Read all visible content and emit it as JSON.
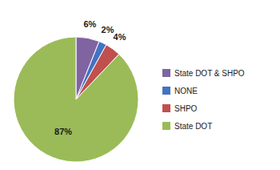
{
  "chart_data": {
    "type": "pie",
    "categories": [
      "State DOT & SHPO",
      "NONE",
      "SHPO",
      "State DOT"
    ],
    "values": [
      6,
      2,
      4,
      87
    ],
    "value_labels": [
      "6%",
      "2%",
      "4%",
      "87%"
    ],
    "colors": [
      "#8064A2",
      "#4472C4",
      "#C0504D",
      "#9BBB59"
    ],
    "data_labels": true,
    "legend": "right"
  }
}
